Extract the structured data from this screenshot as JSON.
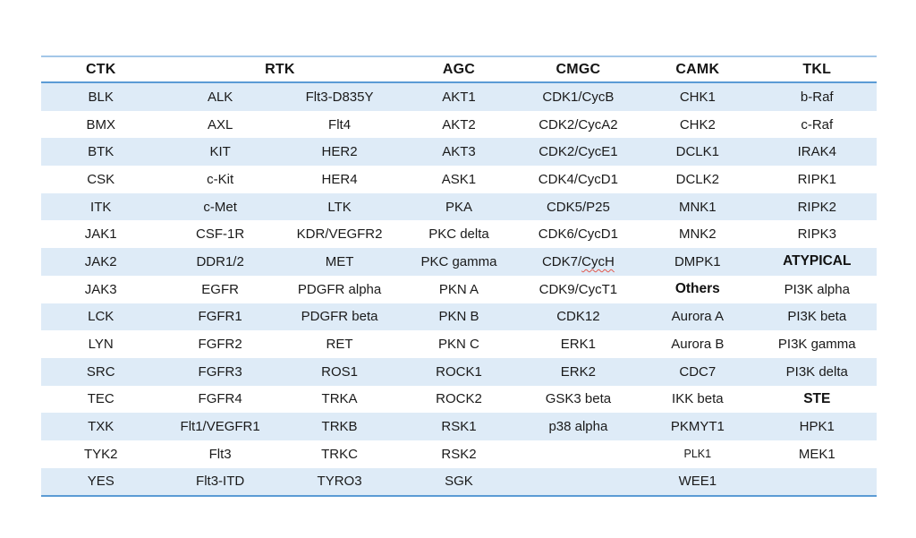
{
  "table": {
    "title": "kinase-family-table",
    "header": [
      {
        "label": "CTK",
        "colspan": 1
      },
      {
        "label": "RTK",
        "colspan": 2
      },
      {
        "label": "AGC",
        "colspan": 1
      },
      {
        "label": "CMGC",
        "colspan": 1
      },
      {
        "label": "CAMK",
        "colspan": 1
      },
      {
        "label": "TKL",
        "colspan": 1
      }
    ],
    "rows": [
      [
        "BLK",
        "ALK",
        "Flt3-D835Y",
        "AKT1",
        "CDK1/CycB",
        "CHK1",
        "b-Raf"
      ],
      [
        "BMX",
        "AXL",
        "Flt4",
        "AKT2",
        "CDK2/CycA2",
        "CHK2",
        "c-Raf"
      ],
      [
        "BTK",
        "KIT",
        "HER2",
        "AKT3",
        "CDK2/CycE1",
        "DCLK1",
        "IRAK4"
      ],
      [
        "CSK",
        "c-Kit",
        "HER4",
        "ASK1",
        "CDK4/CycD1",
        "DCLK2",
        "RIPK1"
      ],
      [
        "ITK",
        "c-Met",
        "LTK",
        "PKA",
        "CDK5/P25",
        "MNK1",
        "RIPK2"
      ],
      [
        "JAK1",
        "CSF-1R",
        "KDR/VEGFR2",
        "PKC delta",
        "CDK6/CycD1",
        "MNK2",
        "RIPK3"
      ],
      [
        "JAK2",
        "DDR1/2",
        "MET",
        "PKC gamma",
        {
          "text": "CDK7/CycH",
          "misspelled_part": "CycH"
        },
        "DMPK1",
        {
          "text": "ATYPICAL",
          "bold": true
        }
      ],
      [
        "JAK3",
        "EGFR",
        "PDGFR alpha",
        "PKN A",
        "CDK9/CycT1",
        {
          "text": "Others",
          "bold": true
        },
        "PI3K alpha"
      ],
      [
        "LCK",
        "FGFR1",
        "PDGFR beta",
        "PKN B",
        "CDK12",
        "Aurora A",
        "PI3K beta"
      ],
      [
        "LYN",
        "FGFR2",
        "RET",
        "PKN C",
        "ERK1",
        "Aurora B",
        "PI3K gamma"
      ],
      [
        "SRC",
        "FGFR3",
        "ROS1",
        "ROCK1",
        "ERK2",
        "CDC7",
        "PI3K delta"
      ],
      [
        "TEC",
        "FGFR4",
        "TRKA",
        "ROCK2",
        "GSK3 beta",
        "IKK beta",
        {
          "text": "STE",
          "bold": true
        }
      ],
      [
        "TXK",
        "Flt1/VEGFR1",
        "TRKB",
        "RSK1",
        "p38 alpha",
        "PKMYT1",
        "HPK1"
      ],
      [
        "TYK2",
        "Flt3",
        "TRKC",
        "RSK2",
        "",
        {
          "text": "PLK1",
          "small": true
        },
        "MEK1"
      ],
      [
        "YES",
        "Flt3-ITD",
        "TYRO3",
        "SGK",
        "",
        "WEE1",
        ""
      ]
    ]
  },
  "colors": {
    "band_fill": "#deebf7",
    "rule_blue": "#5b9bd5",
    "top_rule_blue": "#a3c7e8",
    "text": "#1a1a1a",
    "spellcheck_squiggle": "#e2574c",
    "background": "#ffffff"
  }
}
